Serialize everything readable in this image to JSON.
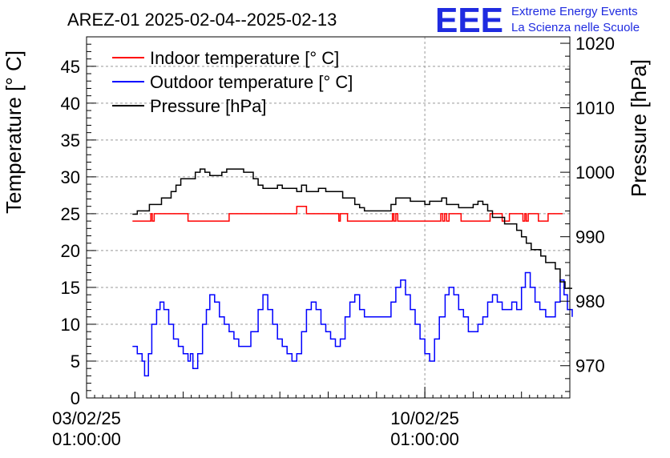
{
  "header": {
    "title": "AREZ-01 2025-02-04--2025-02-13",
    "logo_mark": "EEE",
    "logo_line1": "Extreme Energy Events",
    "logo_line2": "La Scienza nelle Scuole"
  },
  "colors": {
    "indoor": "#ff0000",
    "outdoor": "#0000ff",
    "pressure": "#000000",
    "logo": "#1f2be0"
  },
  "chart_data": {
    "type": "line",
    "grid": true,
    "legend_placement": "top-left",
    "ylabel_left": "Temperature [° C]",
    "ylabel_right": "Pressure [hPa]",
    "x_unit": "days",
    "xlim": [
      3.0,
      13.0
    ],
    "ylim_left": [
      0,
      49
    ],
    "ylim_right": [
      965,
      1021
    ],
    "x_ticks": [
      {
        "x": 3.0,
        "date": "03/02/25",
        "time": "01:00:00"
      },
      {
        "x": 10.0,
        "date": "10/02/25",
        "time": "01:00:00"
      }
    ],
    "y_ticks_left": [
      "0",
      "5",
      "10",
      "15",
      "20",
      "25",
      "30",
      "35",
      "40",
      "45"
    ],
    "y_ticks_right": [
      "970",
      "980",
      "990",
      "1000",
      "1010",
      "1020"
    ],
    "series": [
      {
        "name": "Indoor temperature [° C]",
        "axis": "left",
        "color": "#ff0000",
        "points": [
          [
            3.95,
            24
          ],
          [
            4.3,
            24
          ],
          [
            4.33,
            25
          ],
          [
            4.36,
            24
          ],
          [
            4.4,
            25
          ],
          [
            5.05,
            25
          ],
          [
            5.1,
            24
          ],
          [
            5.9,
            24
          ],
          [
            5.95,
            25
          ],
          [
            7.3,
            25
          ],
          [
            7.35,
            26
          ],
          [
            7.5,
            26
          ],
          [
            7.55,
            25
          ],
          [
            8.2,
            25
          ],
          [
            8.22,
            24
          ],
          [
            8.25,
            25
          ],
          [
            8.35,
            25
          ],
          [
            8.4,
            24
          ],
          [
            9.3,
            24
          ],
          [
            9.33,
            25
          ],
          [
            9.36,
            24
          ],
          [
            9.4,
            25
          ],
          [
            9.44,
            24
          ],
          [
            9.5,
            24
          ],
          [
            10.3,
            24
          ],
          [
            10.33,
            25
          ],
          [
            10.37,
            24
          ],
          [
            10.41,
            25
          ],
          [
            10.45,
            24
          ],
          [
            10.5,
            25
          ],
          [
            10.7,
            25
          ],
          [
            10.75,
            24
          ],
          [
            11.3,
            24
          ],
          [
            11.35,
            25
          ],
          [
            11.55,
            25
          ],
          [
            11.6,
            24
          ],
          [
            11.7,
            24
          ],
          [
            11.75,
            25
          ],
          [
            12.0,
            25
          ],
          [
            12.03,
            24
          ],
          [
            12.07,
            25
          ],
          [
            12.1,
            24
          ],
          [
            12.14,
            25
          ],
          [
            12.3,
            25
          ],
          [
            12.35,
            24
          ],
          [
            12.5,
            24
          ],
          [
            12.55,
            25
          ],
          [
            12.85,
            25
          ]
        ]
      },
      {
        "name": "Outdoor temperature [° C]",
        "axis": "left",
        "color": "#0000ff",
        "points": [
          [
            3.95,
            7
          ],
          [
            4.05,
            6
          ],
          [
            4.15,
            5
          ],
          [
            4.2,
            3
          ],
          [
            4.28,
            6
          ],
          [
            4.35,
            10
          ],
          [
            4.45,
            12
          ],
          [
            4.52,
            13
          ],
          [
            4.6,
            12
          ],
          [
            4.7,
            10
          ],
          [
            4.8,
            8
          ],
          [
            4.9,
            7
          ],
          [
            5.0,
            6
          ],
          [
            5.1,
            5
          ],
          [
            5.15,
            6
          ],
          [
            5.2,
            4
          ],
          [
            5.3,
            6
          ],
          [
            5.4,
            10
          ],
          [
            5.48,
            12
          ],
          [
            5.55,
            14
          ],
          [
            5.65,
            13
          ],
          [
            5.75,
            11
          ],
          [
            5.85,
            10
          ],
          [
            5.95,
            9
          ],
          [
            6.05,
            8
          ],
          [
            6.15,
            7
          ],
          [
            6.3,
            7
          ],
          [
            6.4,
            9
          ],
          [
            6.55,
            12
          ],
          [
            6.65,
            14
          ],
          [
            6.75,
            12
          ],
          [
            6.85,
            10
          ],
          [
            6.95,
            8
          ],
          [
            7.05,
            7
          ],
          [
            7.15,
            6
          ],
          [
            7.25,
            5
          ],
          [
            7.35,
            6
          ],
          [
            7.45,
            9
          ],
          [
            7.55,
            12
          ],
          [
            7.65,
            13
          ],
          [
            7.75,
            12
          ],
          [
            7.85,
            10
          ],
          [
            7.95,
            9
          ],
          [
            8.05,
            8
          ],
          [
            8.15,
            7
          ],
          [
            8.25,
            8
          ],
          [
            8.35,
            11
          ],
          [
            8.45,
            13
          ],
          [
            8.55,
            14
          ],
          [
            8.65,
            12
          ],
          [
            8.75,
            11
          ],
          [
            9.0,
            11
          ],
          [
            9.2,
            11
          ],
          [
            9.3,
            13
          ],
          [
            9.4,
            15
          ],
          [
            9.5,
            16
          ],
          [
            9.6,
            14
          ],
          [
            9.7,
            12
          ],
          [
            9.8,
            10
          ],
          [
            9.9,
            8
          ],
          [
            10.0,
            6
          ],
          [
            10.1,
            5
          ],
          [
            10.2,
            8
          ],
          [
            10.3,
            11
          ],
          [
            10.42,
            14
          ],
          [
            10.5,
            15
          ],
          [
            10.6,
            14
          ],
          [
            10.7,
            12
          ],
          [
            10.8,
            11
          ],
          [
            10.9,
            9
          ],
          [
            11.0,
            9
          ],
          [
            11.1,
            10
          ],
          [
            11.2,
            11
          ],
          [
            11.3,
            13
          ],
          [
            11.4,
            14
          ],
          [
            11.5,
            13
          ],
          [
            11.6,
            12
          ],
          [
            11.7,
            12
          ],
          [
            11.8,
            13
          ],
          [
            11.9,
            12
          ],
          [
            12.0,
            15
          ],
          [
            12.08,
            17
          ],
          [
            12.18,
            15
          ],
          [
            12.28,
            13
          ],
          [
            12.38,
            12
          ],
          [
            12.5,
            11
          ],
          [
            12.6,
            11
          ],
          [
            12.7,
            13
          ],
          [
            12.8,
            16
          ],
          [
            12.88,
            14
          ],
          [
            12.95,
            12
          ],
          [
            13.0,
            12
          ],
          [
            13.05,
            11
          ]
        ]
      },
      {
        "name": "Pressure [hPa]",
        "axis": "right",
        "color": "#000000",
        "points": [
          [
            3.95,
            993.5
          ],
          [
            4.05,
            994
          ],
          [
            4.2,
            994
          ],
          [
            4.3,
            995
          ],
          [
            4.45,
            995
          ],
          [
            4.55,
            996
          ],
          [
            4.65,
            996
          ],
          [
            4.75,
            997
          ],
          [
            4.85,
            998
          ],
          [
            4.95,
            999
          ],
          [
            5.15,
            999
          ],
          [
            5.25,
            1000
          ],
          [
            5.35,
            1000.5
          ],
          [
            5.45,
            1000
          ],
          [
            5.55,
            999.5
          ],
          [
            5.7,
            999.5
          ],
          [
            5.8,
            1000
          ],
          [
            5.9,
            1000.5
          ],
          [
            6.15,
            1000.5
          ],
          [
            6.25,
            1000
          ],
          [
            6.4,
            1000
          ],
          [
            6.45,
            999
          ],
          [
            6.55,
            998
          ],
          [
            6.65,
            997.5
          ],
          [
            6.8,
            997.5
          ],
          [
            6.95,
            998
          ],
          [
            7.05,
            997.5
          ],
          [
            7.2,
            997.5
          ],
          [
            7.35,
            997
          ],
          [
            7.45,
            998
          ],
          [
            7.55,
            997
          ],
          [
            7.7,
            997
          ],
          [
            7.8,
            997.5
          ],
          [
            7.95,
            997
          ],
          [
            8.2,
            997
          ],
          [
            8.3,
            996
          ],
          [
            8.45,
            996
          ],
          [
            8.55,
            995
          ],
          [
            8.65,
            994.5
          ],
          [
            8.75,
            994
          ],
          [
            9.0,
            994
          ],
          [
            9.2,
            994
          ],
          [
            9.3,
            995
          ],
          [
            9.4,
            996
          ],
          [
            9.55,
            996
          ],
          [
            9.7,
            995.5
          ],
          [
            9.9,
            995.5
          ],
          [
            10.0,
            995
          ],
          [
            10.1,
            995.5
          ],
          [
            10.25,
            995.5
          ],
          [
            10.35,
            996
          ],
          [
            10.45,
            995
          ],
          [
            10.6,
            995
          ],
          [
            10.7,
            994.5
          ],
          [
            10.9,
            994.5
          ],
          [
            11.0,
            995
          ],
          [
            11.1,
            995.5
          ],
          [
            11.2,
            995
          ],
          [
            11.3,
            994
          ],
          [
            11.4,
            993
          ],
          [
            11.55,
            993
          ],
          [
            11.65,
            992
          ],
          [
            11.8,
            992
          ],
          [
            11.9,
            991
          ],
          [
            12.0,
            990
          ],
          [
            12.1,
            989
          ],
          [
            12.2,
            988
          ],
          [
            12.3,
            988
          ],
          [
            12.4,
            987
          ],
          [
            12.5,
            986
          ],
          [
            12.6,
            986
          ],
          [
            12.7,
            985
          ],
          [
            12.8,
            983
          ],
          [
            12.9,
            982
          ],
          [
            13.05,
            982
          ]
        ]
      }
    ]
  }
}
